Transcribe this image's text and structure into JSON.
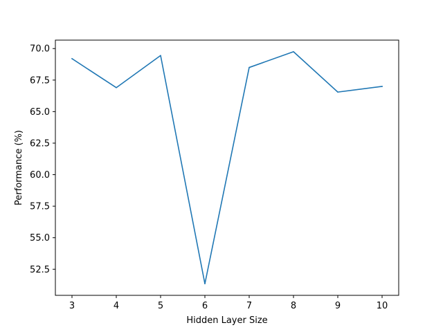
{
  "chart_data": {
    "type": "line",
    "title": "",
    "xlabel": "Hidden Layer Size",
    "ylabel": "Performance (%)",
    "x": [
      3,
      4,
      5,
      6,
      7,
      8,
      9,
      10
    ],
    "series": [
      {
        "values": [
          69.2,
          66.9,
          69.45,
          51.35,
          68.5,
          69.75,
          66.55,
          67.0
        ],
        "color": "#1f77b4"
      }
    ],
    "xlim": [
      2.625,
      10.375
    ],
    "ylim": [
      50.43,
      70.67
    ],
    "xticks": [
      3,
      4,
      5,
      6,
      7,
      8,
      9,
      10
    ],
    "xtick_labels": [
      "3",
      "4",
      "5",
      "6",
      "7",
      "8",
      "9",
      "10"
    ],
    "yticks": [
      52.5,
      55.0,
      57.5,
      60.0,
      62.5,
      65.0,
      67.5,
      70.0
    ],
    "ytick_labels": [
      "52.5",
      "55.0",
      "57.5",
      "60.0",
      "62.5",
      "65.0",
      "67.5",
      "70.0"
    ],
    "grid": false,
    "legend": "none"
  }
}
